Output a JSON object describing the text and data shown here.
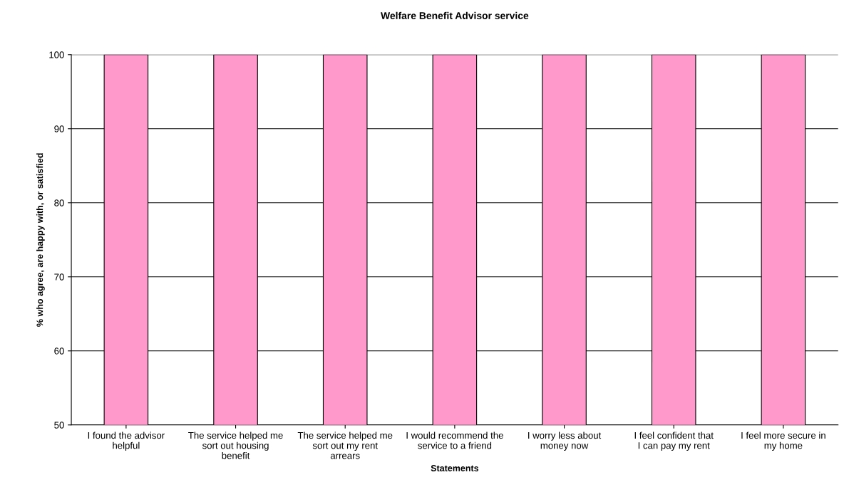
{
  "chart_data": {
    "type": "bar",
    "title": "Welfare Benefit Advisor service",
    "xlabel": "Statements",
    "ylabel": "% who agree, are happy with, or satisfied",
    "categories": [
      "I found the advisor helpful",
      "The service helped me sort out housing benefit",
      "The service helped me sort out my rent arrears",
      "I would recommend the service to a friend",
      "I worry less about money now",
      "I feel confident that I can pay my rent",
      "I feel more secure in my home"
    ],
    "values": [
      100,
      100,
      100,
      100,
      100,
      100,
      100
    ],
    "color": "#ff99cc",
    "ylim": [
      50,
      100
    ],
    "yticks": [
      50,
      60,
      70,
      80,
      90,
      100
    ],
    "grid": "y",
    "legend": false
  }
}
